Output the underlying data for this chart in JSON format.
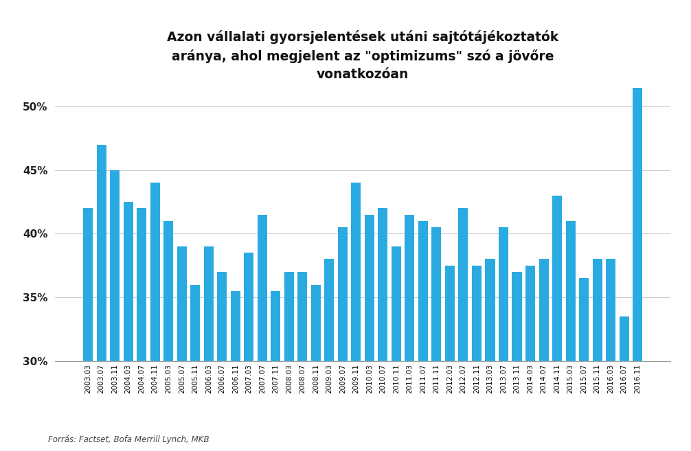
{
  "title": "Azon vállalati gyorsjelentések utáni sajtótájékoztatók\naránya, ahol megjelent az \"optimizums\" szó a jövőre\nvonatkozóan",
  "bar_color": "#29ABE2",
  "background_color": "#ffffff",
  "source_text": "Forrás: Factset, Bofa Merrill Lynch, MKB",
  "ylim": [
    0.3,
    0.52
  ],
  "yticks": [
    0.3,
    0.35,
    0.4,
    0.45,
    0.5
  ],
  "categories": [
    "2003.03",
    "2003.07",
    "2003.11",
    "2004.03",
    "2004.07",
    "2004.11",
    "2005.03",
    "2005.07",
    "2005.11",
    "2006.03",
    "2006.07",
    "2006.11",
    "2007.03",
    "2007.07",
    "2007.11",
    "2008.03",
    "2008.07",
    "2008.11",
    "2009.03",
    "2009.07",
    "2009.11",
    "2010.03",
    "2010.07",
    "2010.11",
    "2011.03",
    "2011.07",
    "2011.11",
    "2012.03",
    "2012.07",
    "2012.11",
    "2013.03",
    "2013.07",
    "2013.11",
    "2014.03",
    "2014.07",
    "2014.11",
    "2015.03",
    "2015.07",
    "2015.11",
    "2016.03",
    "2016.07",
    "2016.11"
  ],
  "values": [
    0.42,
    0.47,
    0.45,
    0.425,
    0.42,
    0.44,
    0.41,
    0.39,
    0.36,
    0.39,
    0.37,
    0.355,
    0.385,
    0.415,
    0.355,
    0.37,
    0.37,
    0.36,
    0.38,
    0.405,
    0.44,
    0.415,
    0.42,
    0.39,
    0.415,
    0.41,
    0.405,
    0.375,
    0.42,
    0.375,
    0.38,
    0.405,
    0.37,
    0.375,
    0.38,
    0.43,
    0.41,
    0.365,
    0.38,
    0.38,
    0.335,
    0.515
  ]
}
